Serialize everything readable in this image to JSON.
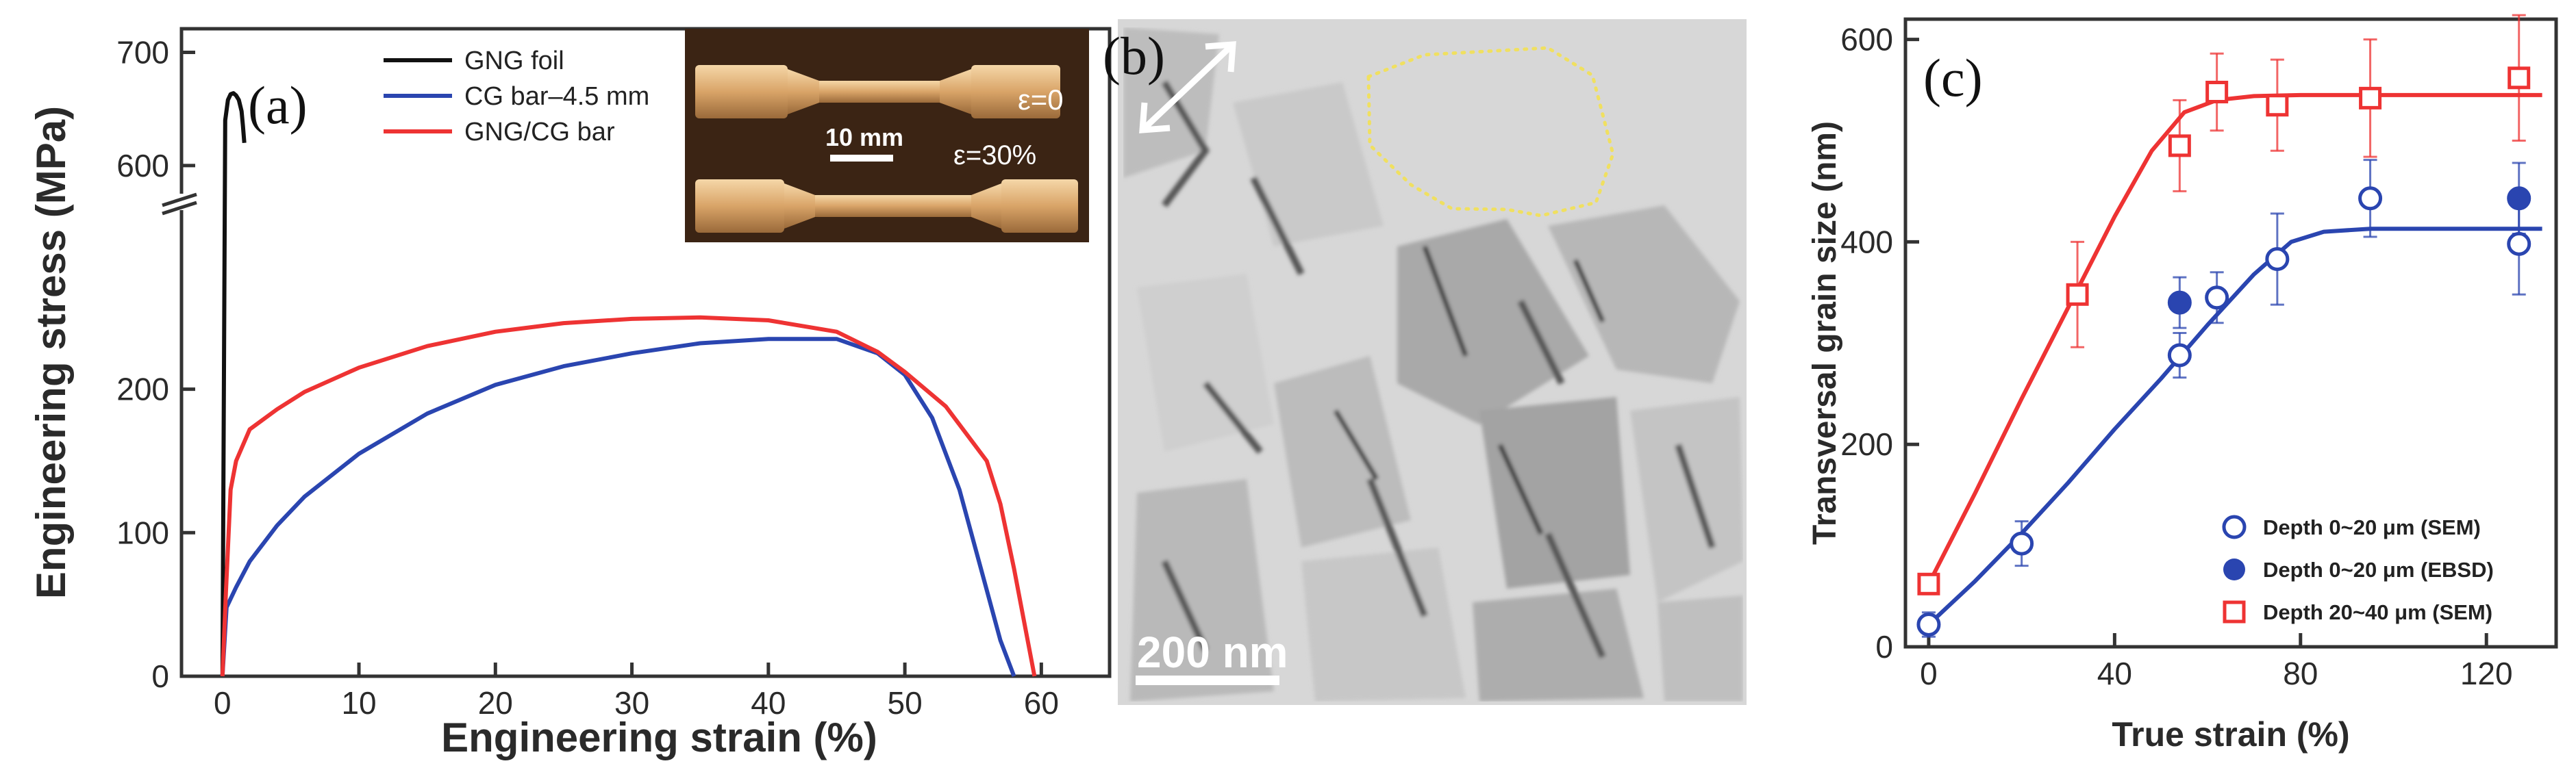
{
  "chart_data": [
    {
      "panel_label": "(a)",
      "type": "line",
      "xlabel": "Engineering strain (%)",
      "ylabel": "Engineering stress (MPa)",
      "xlim": [
        -3,
        65
      ],
      "ylim_lower": [
        0,
        330
      ],
      "ylim_upper": [
        580,
        710
      ],
      "axis_break": true,
      "xticks": [
        0,
        10,
        20,
        30,
        40,
        50,
        60
      ],
      "yticks_lower": [
        0,
        100,
        200
      ],
      "yticks_upper": [
        600,
        700
      ],
      "legend_position": "top-center",
      "series": [
        {
          "name": "GNG foil",
          "color": "#111111",
          "x": [
            0,
            0.2,
            0.4,
            0.6,
            0.8,
            1.0,
            1.2,
            1.4,
            1.5,
            1.6
          ],
          "y": [
            0,
            640,
            658,
            663,
            664,
            662,
            658,
            648,
            635,
            620
          ]
        },
        {
          "name": "CG bar–4.5 mm",
          "color": "#2a45b0",
          "x": [
            0,
            0.3,
            1,
            2,
            4,
            6,
            10,
            15,
            20,
            25,
            30,
            35,
            40,
            45,
            48,
            50,
            52,
            54,
            56,
            57,
            58
          ],
          "y": [
            0,
            48,
            62,
            80,
            105,
            125,
            155,
            183,
            203,
            216,
            225,
            232,
            235,
            235,
            225,
            210,
            180,
            130,
            60,
            25,
            0
          ]
        },
        {
          "name": "GNG/CG bar",
          "color": "#ee3333",
          "x": [
            0,
            0.25,
            0.6,
            1,
            2,
            4,
            6,
            10,
            15,
            20,
            25,
            30,
            35,
            40,
            45,
            48,
            50,
            53,
            56,
            57,
            58,
            59,
            59.5
          ],
          "y": [
            0,
            58,
            130,
            150,
            172,
            186,
            198,
            215,
            230,
            240,
            246,
            249,
            250,
            248,
            240,
            226,
            212,
            188,
            150,
            120,
            75,
            25,
            0
          ]
        }
      ],
      "inset": {
        "labels": [
          "ε=0",
          "ε=30%"
        ],
        "scalebar": "10 mm"
      }
    },
    {
      "panel_label": "(b)",
      "type": "image",
      "scalebar": "200 nm"
    },
    {
      "panel_label": "(c)",
      "type": "scatter",
      "xlabel": "True strain (%)",
      "ylabel": "Transversal grain size (nm)",
      "xlim": [
        -5,
        135
      ],
      "ylim": [
        0,
        620
      ],
      "xticks": [
        0,
        40,
        80,
        120
      ],
      "yticks": [
        0,
        200,
        400,
        600
      ],
      "legend_position": "bottom-right",
      "series": [
        {
          "name": "Depth 0~20 μm (SEM)",
          "marker": "open-circle",
          "color": "#2a45b0",
          "x": [
            0,
            20,
            54,
            62,
            75,
            95,
            127
          ],
          "y": [
            22,
            102,
            288,
            345,
            383,
            443,
            398
          ],
          "err": [
            12,
            22,
            22,
            25,
            45,
            38,
            50
          ]
        },
        {
          "name": "Depth 0~20 μm (EBSD)",
          "marker": "filled-circle",
          "color": "#2a45b0",
          "x": [
            54,
            127
          ],
          "y": [
            340,
            443
          ],
          "err": [
            25,
            35
          ]
        },
        {
          "name": "Depth 20~40 μm (SEM)",
          "marker": "open-square",
          "color": "#ee3333",
          "x": [
            0,
            32,
            54,
            62,
            75,
            95,
            127
          ],
          "y": [
            62,
            348,
            495,
            548,
            535,
            542,
            562
          ],
          "err": [
            10,
            52,
            45,
            38,
            45,
            58,
            62
          ]
        }
      ],
      "fits": [
        {
          "color": "#2a45b0",
          "x": [
            0,
            10,
            20,
            30,
            40,
            50,
            60,
            70,
            78,
            85,
            95,
            110,
            132
          ],
          "y": [
            22,
            65,
            112,
            162,
            215,
            265,
            318,
            368,
            400,
            410,
            413,
            413,
            413
          ]
        },
        {
          "color": "#ee3333",
          "x": [
            0,
            10,
            20,
            30,
            40,
            48,
            55,
            62,
            70,
            80,
            95,
            110,
            132
          ],
          "y": [
            62,
            152,
            245,
            335,
            425,
            490,
            528,
            540,
            544,
            545,
            545,
            545,
            545
          ]
        }
      ]
    }
  ]
}
